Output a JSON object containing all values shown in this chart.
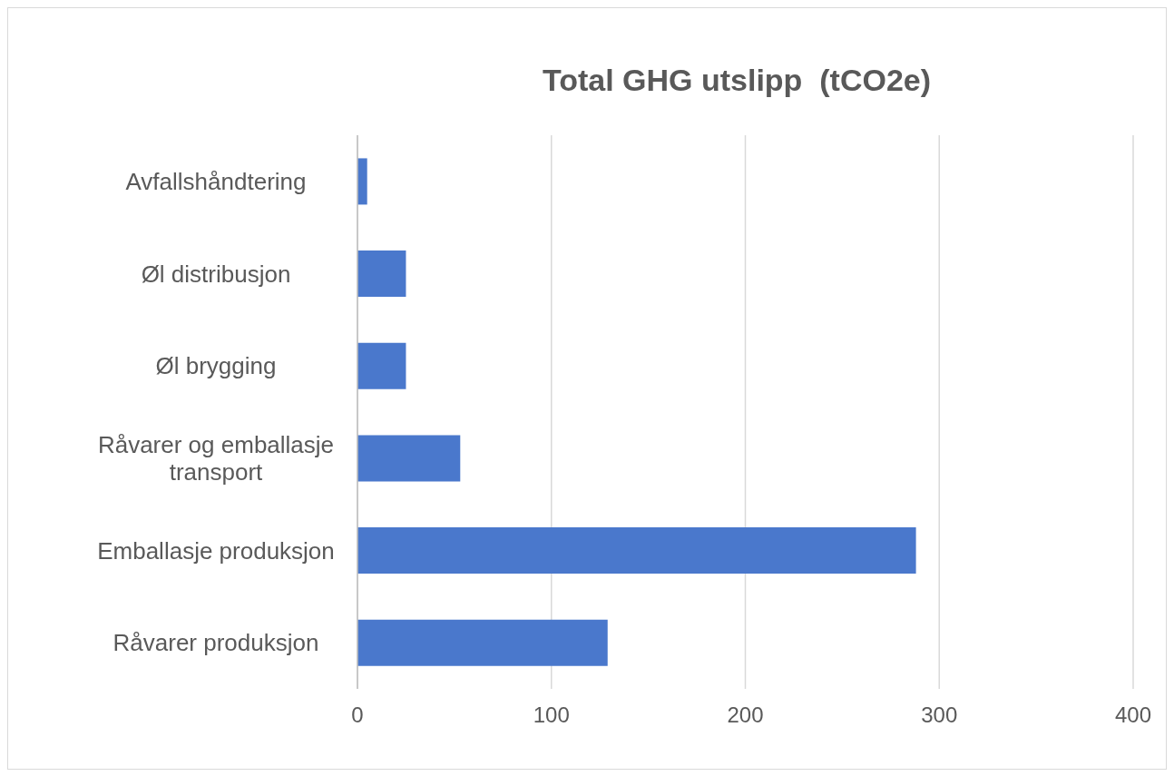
{
  "chart_data": {
    "type": "bar",
    "orientation": "horizontal",
    "title": "Total GHG utslipp  (tCO2e)",
    "categories": [
      "Avfallshåndtering",
      "Øl distribusjon",
      "Øl brygging",
      "Råvarer og emballasje transport",
      "Emballasje produksjon",
      "Råvarer produksjon"
    ],
    "values": [
      5,
      25,
      25,
      53,
      288,
      129
    ],
    "color": "#4a78cc",
    "xlim": [
      0,
      400
    ],
    "xticks": [
      0,
      100,
      200,
      300,
      400
    ],
    "grid": "x"
  }
}
